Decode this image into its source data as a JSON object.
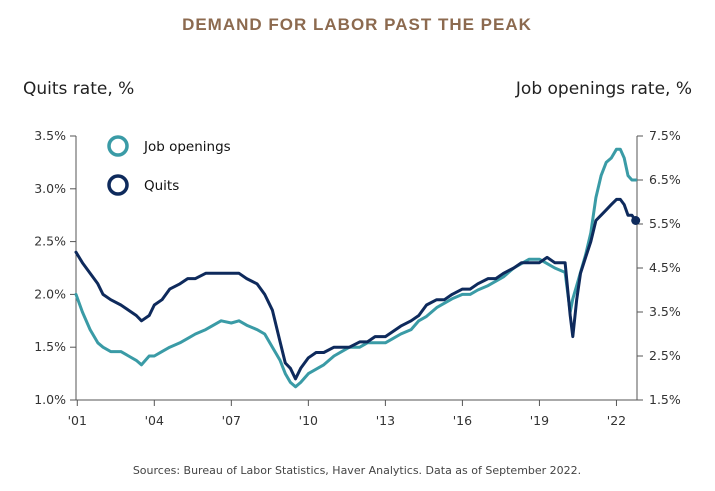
{
  "chart_data": {
    "type": "line",
    "title": "DEMAND FOR LABOR PAST THE PEAK",
    "left_axis_label": "Quits rate, %",
    "right_axis_label": "Job openings rate, %",
    "source": "Sources: Bureau of Labor Statistics, Haver Analytics. Data as of September 2022.",
    "x_ticks": [
      "'01",
      "'04",
      "'07",
      "'10",
      "'13",
      "'16",
      "'19",
      "'22"
    ],
    "x_tick_years": [
      2001,
      2004,
      2007,
      2010,
      2013,
      2016,
      2019,
      2022
    ],
    "xlim": [
      2000.95,
      2022.8
    ],
    "left_ticks": [
      "1.0%",
      "1.5%",
      "2.0%",
      "2.5%",
      "3.0%",
      "3.5%"
    ],
    "left_ylim": [
      1.0,
      3.5
    ],
    "right_ticks": [
      "1.5%",
      "2.5%",
      "3.5%",
      "4.5%",
      "5.5%",
      "6.5%",
      "7.5%"
    ],
    "right_ylim": [
      1.5,
      7.5
    ],
    "grid": false,
    "legend_position": "top-left",
    "colors": {
      "title": "#8c6a4f",
      "job_openings": "#3a9ba6",
      "quits": "#0e2a5c",
      "axis": "#555555"
    },
    "series": [
      {
        "name": "Job openings",
        "axis": "right",
        "x": [
          2000.95,
          2001.2,
          2001.5,
          2001.8,
          2002.0,
          2002.3,
          2002.7,
          2003.0,
          2003.3,
          2003.5,
          2003.8,
          2004.0,
          2004.3,
          2004.6,
          2005.0,
          2005.3,
          2005.6,
          2006.0,
          2006.3,
          2006.6,
          2007.0,
          2007.3,
          2007.6,
          2008.0,
          2008.3,
          2008.6,
          2008.9,
          2009.1,
          2009.3,
          2009.5,
          2009.7,
          2010.0,
          2010.3,
          2010.6,
          2011.0,
          2011.3,
          2011.6,
          2012.0,
          2012.3,
          2012.6,
          2013.0,
          2013.3,
          2013.6,
          2014.0,
          2014.3,
          2014.6,
          2015.0,
          2015.3,
          2015.6,
          2016.0,
          2016.3,
          2016.6,
          2017.0,
          2017.3,
          2017.6,
          2018.0,
          2018.3,
          2018.6,
          2019.0,
          2019.3,
          2019.6,
          2020.0,
          2020.2,
          2020.3,
          2020.45,
          2020.6,
          2020.8,
          2021.0,
          2021.2,
          2021.4,
          2021.6,
          2021.8,
          2022.0,
          2022.15,
          2022.3,
          2022.45,
          2022.6,
          2022.75
        ],
        "values": [
          3.9,
          3.5,
          3.1,
          2.8,
          2.7,
          2.6,
          2.6,
          2.5,
          2.4,
          2.3,
          2.5,
          2.5,
          2.6,
          2.7,
          2.8,
          2.9,
          3.0,
          3.1,
          3.2,
          3.3,
          3.25,
          3.3,
          3.2,
          3.1,
          3.0,
          2.7,
          2.4,
          2.1,
          1.9,
          1.8,
          1.9,
          2.1,
          2.2,
          2.3,
          2.5,
          2.6,
          2.7,
          2.7,
          2.8,
          2.8,
          2.8,
          2.9,
          3.0,
          3.1,
          3.3,
          3.4,
          3.6,
          3.7,
          3.8,
          3.9,
          3.9,
          4.0,
          4.1,
          4.2,
          4.3,
          4.5,
          4.6,
          4.7,
          4.7,
          4.6,
          4.5,
          4.4,
          3.5,
          3.8,
          4.1,
          4.4,
          4.8,
          5.3,
          6.1,
          6.6,
          6.9,
          7.0,
          7.2,
          7.2,
          7.0,
          6.6,
          6.5,
          6.5
        ]
      },
      {
        "name": "Quits",
        "axis": "left",
        "x": [
          2000.95,
          2001.2,
          2001.5,
          2001.8,
          2002.0,
          2002.3,
          2002.7,
          2003.0,
          2003.3,
          2003.5,
          2003.8,
          2004.0,
          2004.3,
          2004.6,
          2005.0,
          2005.3,
          2005.6,
          2006.0,
          2006.3,
          2006.6,
          2007.0,
          2007.3,
          2007.6,
          2008.0,
          2008.3,
          2008.6,
          2008.9,
          2009.1,
          2009.3,
          2009.5,
          2009.7,
          2010.0,
          2010.3,
          2010.6,
          2011.0,
          2011.3,
          2011.6,
          2012.0,
          2012.3,
          2012.6,
          2013.0,
          2013.3,
          2013.6,
          2014.0,
          2014.3,
          2014.6,
          2015.0,
          2015.3,
          2015.6,
          2016.0,
          2016.3,
          2016.6,
          2017.0,
          2017.3,
          2017.6,
          2018.0,
          2018.3,
          2018.6,
          2019.0,
          2019.3,
          2019.6,
          2020.0,
          2020.2,
          2020.3,
          2020.45,
          2020.6,
          2020.8,
          2021.0,
          2021.2,
          2021.4,
          2021.6,
          2021.8,
          2022.0,
          2022.15,
          2022.3,
          2022.45,
          2022.6,
          2022.75
        ],
        "values": [
          2.4,
          2.3,
          2.2,
          2.1,
          2.0,
          1.95,
          1.9,
          1.85,
          1.8,
          1.75,
          1.8,
          1.9,
          1.95,
          2.05,
          2.1,
          2.15,
          2.15,
          2.2,
          2.2,
          2.2,
          2.2,
          2.2,
          2.15,
          2.1,
          2.0,
          1.85,
          1.55,
          1.35,
          1.3,
          1.2,
          1.3,
          1.4,
          1.45,
          1.45,
          1.5,
          1.5,
          1.5,
          1.55,
          1.55,
          1.6,
          1.6,
          1.65,
          1.7,
          1.75,
          1.8,
          1.9,
          1.95,
          1.95,
          2.0,
          2.05,
          2.05,
          2.1,
          2.15,
          2.15,
          2.2,
          2.25,
          2.3,
          2.3,
          2.3,
          2.35,
          2.3,
          2.3,
          1.8,
          1.6,
          1.95,
          2.2,
          2.35,
          2.5,
          2.7,
          2.75,
          2.8,
          2.85,
          2.9,
          2.9,
          2.85,
          2.75,
          2.75,
          2.7
        ]
      }
    ]
  }
}
